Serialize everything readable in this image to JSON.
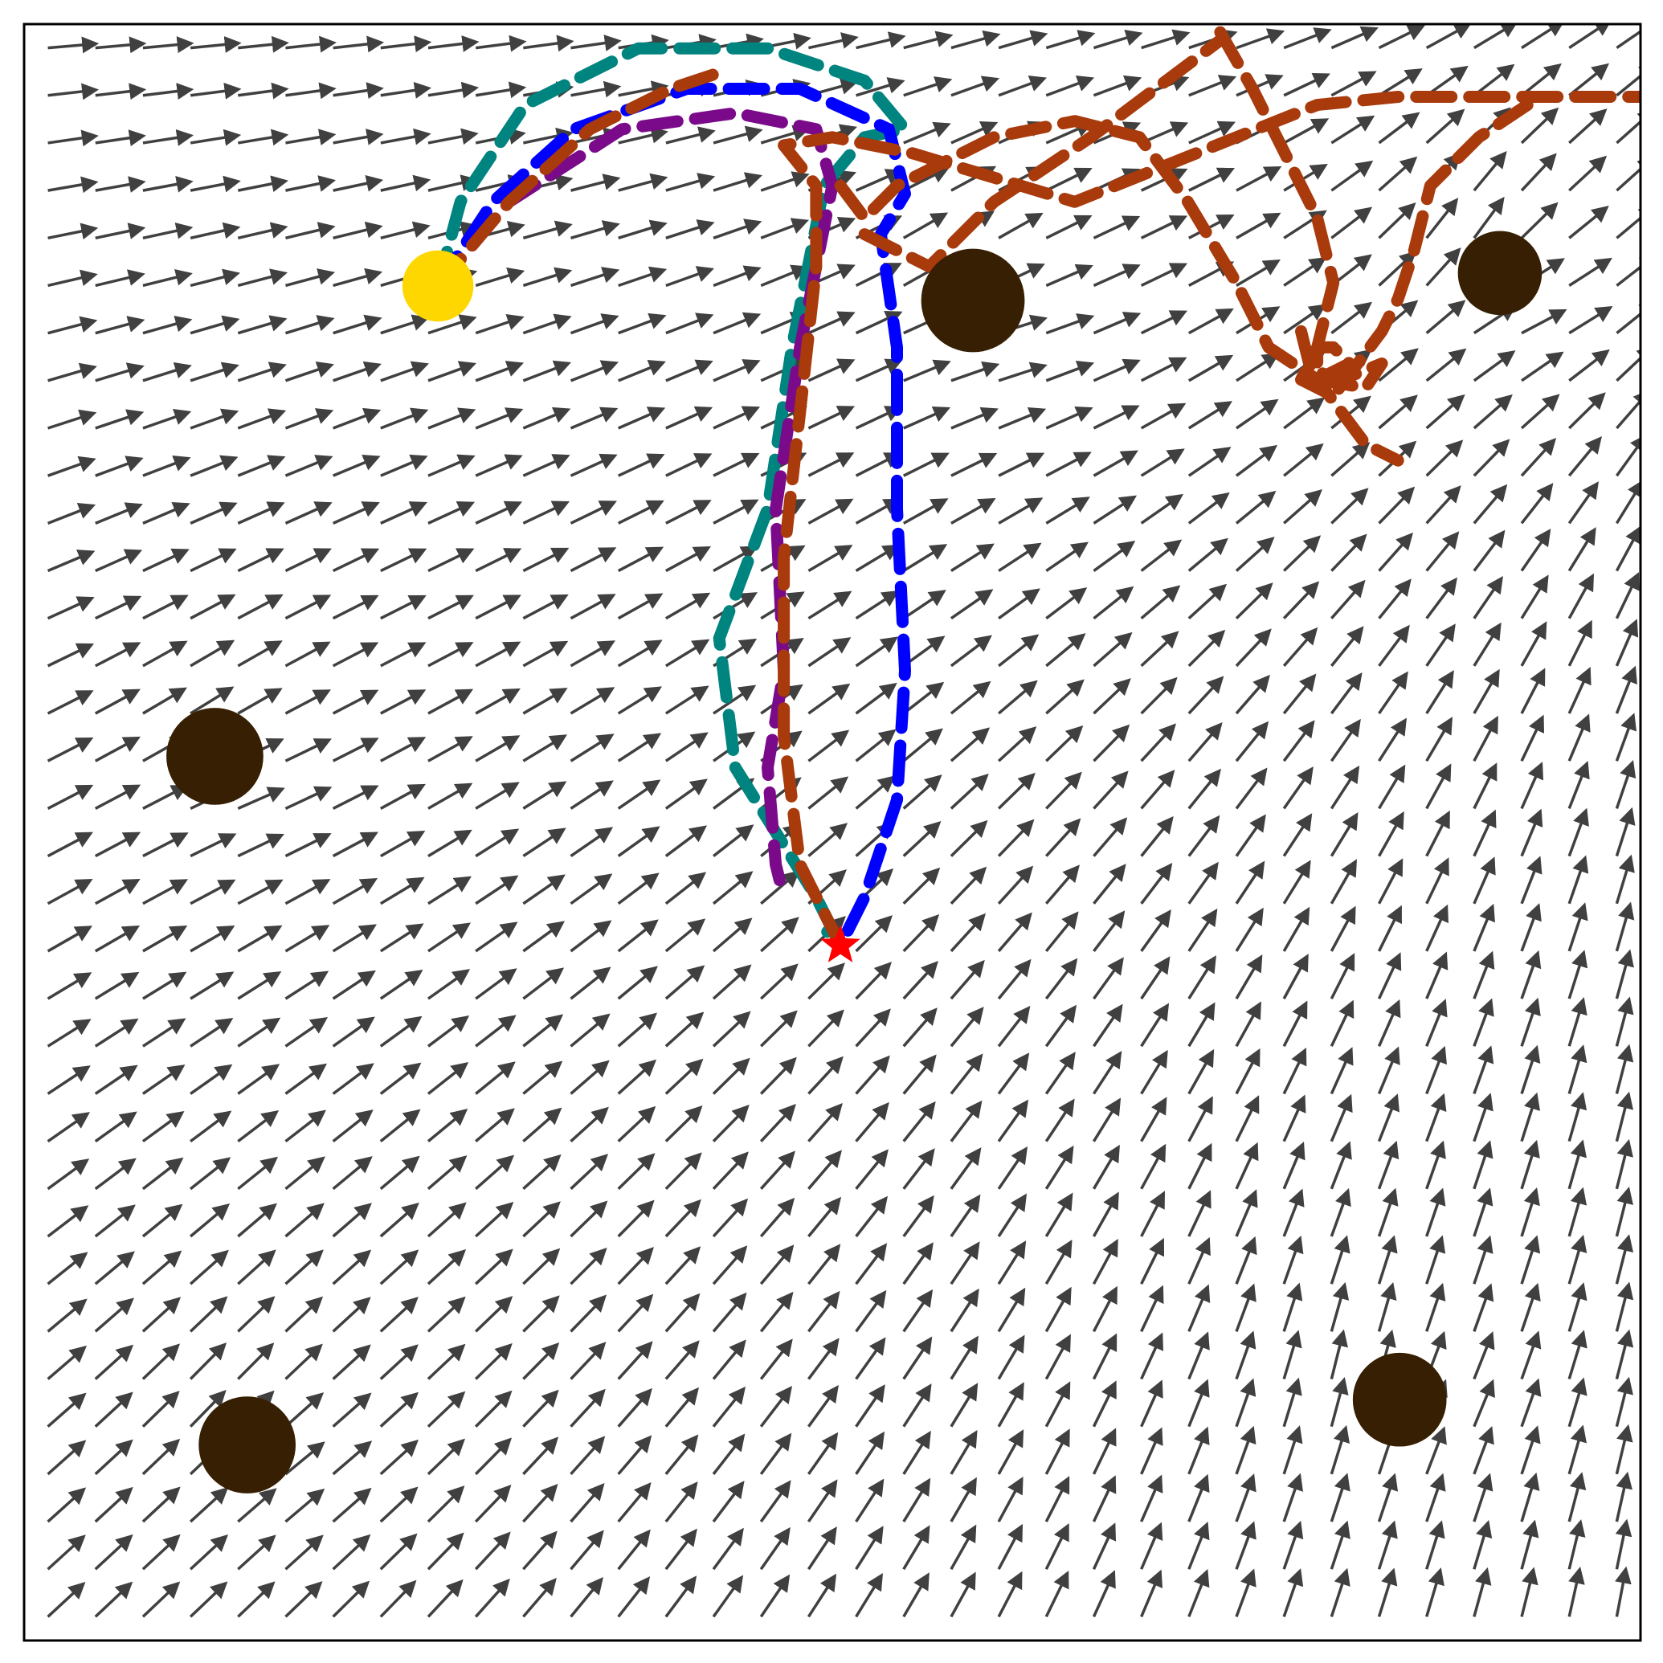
{
  "chart_data": {
    "type": "quiver",
    "title": "",
    "xlabel": "",
    "ylabel": "",
    "xlim": [
      0,
      1
    ],
    "ylim": [
      0,
      1
    ],
    "grid": false,
    "legend": "none",
    "colors": {
      "arrows": "#404040",
      "obstacle": "#361f02",
      "start": "#ffd700",
      "goal": "#ff0000",
      "path_teal": "#00847f",
      "path_blue": "#0000ff",
      "path_purple": "#7a0a8a",
      "path_rust": "#a83a0b",
      "frame": "#000000"
    },
    "field": {
      "nx": 34,
      "ny": 34,
      "max_arrow": 0.03,
      "mode": "attractor-repulsor"
    },
    "obstacles": [
      {
        "x": 0.587,
        "y": 0.829,
        "r": 0.032
      },
      {
        "x": 0.913,
        "y": 0.846,
        "r": 0.026
      },
      {
        "x": 0.118,
        "y": 0.547,
        "r": 0.03
      },
      {
        "x": 0.138,
        "y": 0.121,
        "r": 0.03
      },
      {
        "x": 0.851,
        "y": 0.149,
        "r": 0.029
      }
    ],
    "start": {
      "x": 0.256,
      "y": 0.838,
      "r": 0.022
    },
    "goal": {
      "x": 0.505,
      "y": 0.43
    },
    "paths": [
      {
        "color": "path_teal",
        "points": [
          [
            0.256,
            0.838
          ],
          [
            0.27,
            0.89
          ],
          [
            0.31,
            0.95
          ],
          [
            0.38,
            0.985
          ],
          [
            0.46,
            0.985
          ],
          [
            0.52,
            0.965
          ],
          [
            0.545,
            0.935
          ],
          [
            0.52,
            0.93
          ],
          [
            0.495,
            0.9
          ],
          [
            0.475,
            0.8
          ],
          [
            0.46,
            0.7
          ],
          [
            0.43,
            0.62
          ],
          [
            0.44,
            0.54
          ],
          [
            0.465,
            0.5
          ],
          [
            0.49,
            0.46
          ],
          [
            0.5,
            0.44
          ],
          [
            0.49,
            0.435
          ]
        ]
      },
      {
        "color": "path_blue",
        "points": [
          [
            0.256,
            0.838
          ],
          [
            0.29,
            0.89
          ],
          [
            0.34,
            0.935
          ],
          [
            0.41,
            0.96
          ],
          [
            0.48,
            0.96
          ],
          [
            0.535,
            0.935
          ],
          [
            0.545,
            0.895
          ],
          [
            0.53,
            0.87
          ],
          [
            0.54,
            0.8
          ],
          [
            0.54,
            0.7
          ],
          [
            0.545,
            0.6
          ],
          [
            0.54,
            0.52
          ],
          [
            0.52,
            0.46
          ],
          [
            0.505,
            0.43
          ]
        ]
      },
      {
        "color": "path_purple",
        "points": [
          [
            0.256,
            0.838
          ],
          [
            0.3,
            0.89
          ],
          [
            0.37,
            0.935
          ],
          [
            0.44,
            0.945
          ],
          [
            0.49,
            0.935
          ],
          [
            0.5,
            0.9
          ],
          [
            0.48,
            0.8
          ],
          [
            0.465,
            0.7
          ],
          [
            0.47,
            0.6
          ],
          [
            0.46,
            0.54
          ],
          [
            0.465,
            0.48
          ],
          [
            0.47,
            0.46
          ]
        ]
      },
      {
        "color": "path_rust",
        "points": [
          [
            0.256,
            0.838
          ],
          [
            0.3,
            0.89
          ],
          [
            0.35,
            0.935
          ],
          [
            0.4,
            0.96
          ],
          [
            0.43,
            0.97
          ]
        ]
      },
      {
        "color": "path_rust",
        "points": [
          [
            0.505,
            0.43
          ],
          [
            0.48,
            0.48
          ],
          [
            0.47,
            0.56
          ],
          [
            0.47,
            0.67
          ],
          [
            0.48,
            0.76
          ],
          [
            0.49,
            0.85
          ],
          [
            0.49,
            0.9
          ],
          [
            0.47,
            0.925
          ],
          [
            0.5,
            0.93
          ],
          [
            0.55,
            0.92
          ],
          [
            0.6,
            0.905
          ],
          [
            0.65,
            0.89
          ],
          [
            0.7,
            0.91
          ],
          [
            0.75,
            0.93
          ],
          [
            0.8,
            0.95
          ],
          [
            0.85,
            0.955
          ],
          [
            0.9,
            0.955
          ],
          [
            0.95,
            0.955
          ],
          [
            1.0,
            0.955
          ]
        ]
      },
      {
        "color": "path_rust",
        "points": [
          [
            0.505,
            0.9
          ],
          [
            0.52,
            0.88
          ],
          [
            0.54,
            0.9
          ],
          [
            0.56,
            0.91
          ],
          [
            0.6,
            0.93
          ],
          [
            0.65,
            0.94
          ],
          [
            0.69,
            0.93
          ],
          [
            0.72,
            0.89
          ],
          [
            0.75,
            0.84
          ],
          [
            0.77,
            0.8
          ],
          [
            0.8,
            0.78
          ],
          [
            0.83,
            0.74
          ],
          [
            0.85,
            0.73
          ]
        ]
      },
      {
        "color": "path_rust",
        "points": [
          [
            0.52,
            0.87
          ],
          [
            0.56,
            0.85
          ],
          [
            0.6,
            0.89
          ],
          [
            0.63,
            0.91
          ],
          [
            0.66,
            0.93
          ],
          [
            0.7,
            0.96
          ],
          [
            0.74,
            0.99
          ]
        ]
      },
      {
        "color": "path_rust",
        "points": [
          [
            0.74,
            0.995
          ],
          [
            0.76,
            0.96
          ],
          [
            0.78,
            0.92
          ],
          [
            0.8,
            0.88
          ],
          [
            0.81,
            0.84
          ],
          [
            0.8,
            0.8
          ],
          [
            0.79,
            0.78
          ],
          [
            0.81,
            0.77
          ],
          [
            0.84,
            0.81
          ],
          [
            0.85,
            0.83
          ],
          [
            0.86,
            0.86
          ],
          [
            0.87,
            0.9
          ],
          [
            0.9,
            0.93
          ],
          [
            0.93,
            0.95
          ]
        ]
      },
      {
        "color": "path_rust",
        "points": [
          [
            0.79,
            0.81
          ],
          [
            0.795,
            0.79
          ],
          [
            0.8,
            0.78
          ],
          [
            0.82,
            0.79
          ],
          [
            0.81,
            0.8
          ],
          [
            0.8,
            0.8
          ],
          [
            0.8,
            0.78
          ],
          [
            0.83,
            0.775
          ],
          [
            0.84,
            0.79
          ],
          [
            0.815,
            0.78
          ],
          [
            0.8,
            0.785
          ]
        ]
      }
    ]
  }
}
